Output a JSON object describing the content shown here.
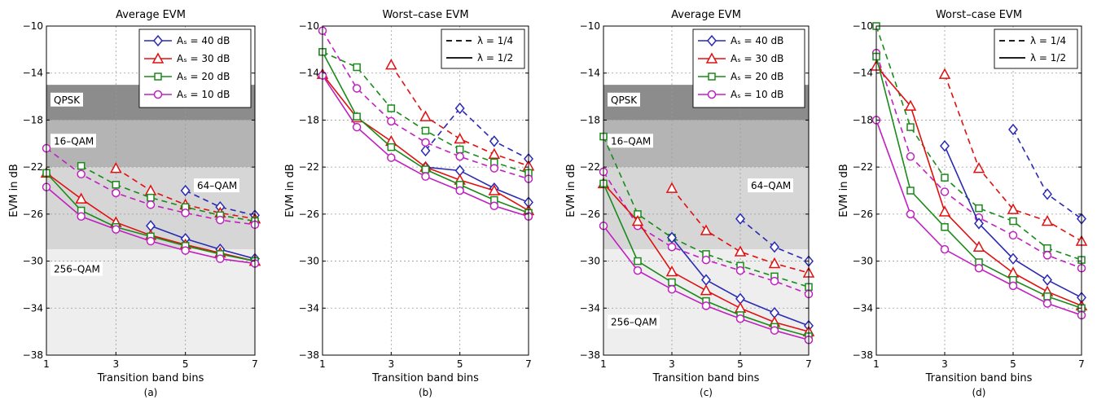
{
  "y_axis_label": "EVM in dB",
  "x_axis_label": "Transition band bins",
  "colors": {
    "series_40": "#2a2ab4",
    "series_30": "#e01010",
    "series_20": "#1a8a1a",
    "series_10": "#c020c0",
    "region_qpsk": "#8c8c8c",
    "region_16qam": "#b4b4b4",
    "region_64qam": "#d6d6d6",
    "region_256qam": "#eeeeee"
  },
  "chart_data": [
    {
      "panel_label": "(a)",
      "title": "Average EVM",
      "type": "line",
      "xlim": [
        1,
        7
      ],
      "ylim": [
        -38,
        -10
      ],
      "xticks": [
        1,
        3,
        5,
        7
      ],
      "yticks": [
        -10,
        -14,
        -18,
        -22,
        -26,
        -30,
        -34,
        -38
      ],
      "grid": "dashed",
      "legend_placement": "top-right",
      "regions": [
        {
          "label": "QPSK",
          "y_range": [
            -18,
            -15
          ],
          "color_key": "region_qpsk"
        },
        {
          "label": "16–QAM",
          "y_range": [
            -22,
            -18
          ],
          "color_key": "region_16qam"
        },
        {
          "label": "64–QAM",
          "y_range": [
            -29,
            -22
          ],
          "color_key": "region_64qam"
        },
        {
          "label": "256–QAM",
          "y_range": [
            -38,
            -29
          ],
          "color_key": "region_256qam"
        }
      ],
      "series": [
        {
          "name": "Aₛ = 40 dB",
          "marker": "diamond",
          "color_key": "series_40",
          "x": [
            4,
            5,
            6,
            7
          ],
          "values": [
            -27.0,
            -28.1,
            -29.0,
            -29.8
          ]
        },
        {
          "name": "Aₛ = 40 dB",
          "marker": "diamond",
          "color_key": "series_40",
          "dashed": true,
          "x": [
            5,
            6,
            7
          ],
          "values": [
            -24.0,
            -25.4,
            -26.1
          ]
        },
        {
          "name": "Aₛ = 30 dB",
          "marker": "triangle",
          "color_key": "series_30",
          "x": [
            1,
            2,
            3,
            4,
            5,
            6,
            7
          ],
          "values": [
            -22.5,
            -24.7,
            -26.7,
            -27.8,
            -28.6,
            -29.3,
            -30.0
          ]
        },
        {
          "name": "Aₛ = 30 dB",
          "marker": "triangle",
          "color_key": "series_30",
          "dashed": true,
          "x": [
            3,
            4,
            5,
            6,
            7
          ],
          "values": [
            -22.1,
            -24.0,
            -25.2,
            -25.9,
            -26.4
          ]
        },
        {
          "name": "Aₛ = 20 dB",
          "marker": "square",
          "color_key": "series_20",
          "x": [
            1,
            2,
            3,
            4,
            5,
            6,
            7
          ],
          "values": [
            -22.5,
            -25.7,
            -27.1,
            -27.9,
            -28.7,
            -29.4,
            -30.0
          ]
        },
        {
          "name": "Aₛ = 20 dB",
          "marker": "square",
          "color_key": "series_20",
          "dashed": true,
          "x": [
            2,
            3,
            4,
            5,
            6,
            7
          ],
          "values": [
            -21.9,
            -23.5,
            -24.6,
            -25.4,
            -26.1,
            -26.6
          ]
        },
        {
          "name": "Aₛ = 10 dB",
          "marker": "circle",
          "color_key": "series_10",
          "x": [
            1,
            2,
            3,
            4,
            5,
            6,
            7
          ],
          "values": [
            -23.7,
            -26.2,
            -27.3,
            -28.3,
            -29.1,
            -29.8,
            -30.2
          ]
        },
        {
          "name": "Aₛ = 10 dB",
          "marker": "circle",
          "color_key": "series_10",
          "dashed": true,
          "x": [
            1,
            2,
            3,
            4,
            5,
            6,
            7
          ],
          "values": [
            -20.4,
            -22.6,
            -24.2,
            -25.2,
            -25.9,
            -26.5,
            -26.9
          ]
        }
      ],
      "legend": [
        {
          "label": "Aₛ = 40 dB",
          "marker": "diamond",
          "color_key": "series_40"
        },
        {
          "label": "Aₛ = 30 dB",
          "marker": "triangle",
          "color_key": "series_30"
        },
        {
          "label": "Aₛ = 20 dB",
          "marker": "square",
          "color_key": "series_20"
        },
        {
          "label": "Aₛ = 10 dB",
          "marker": "circle",
          "color_key": "series_10"
        }
      ]
    },
    {
      "panel_label": "(b)",
      "title": "Worst–case EVM",
      "type": "line",
      "xlim": [
        1,
        7
      ],
      "ylim": [
        -38,
        -10
      ],
      "xticks": [
        1,
        3,
        5,
        7
      ],
      "yticks": [
        -10,
        -14,
        -18,
        -22,
        -26,
        -30,
        -34,
        -38
      ],
      "grid": "dashed",
      "legend_placement": "top-right",
      "regions": [],
      "series": [
        {
          "name": "Aₛ = 40 dB",
          "marker": "diamond",
          "color_key": "series_40",
          "x": [
            4,
            5,
            6,
            7
          ],
          "values": [
            -22.0,
            -22.3,
            -23.8,
            -25.0
          ]
        },
        {
          "name": "Aₛ = 40 dB",
          "marker": "diamond",
          "color_key": "series_40",
          "dashed": true,
          "x": [
            4,
            5,
            6,
            7
          ],
          "values": [
            -20.6,
            -17.0,
            -19.8,
            -21.3
          ]
        },
        {
          "name": "Aₛ = 30 dB",
          "marker": "triangle",
          "color_key": "series_30",
          "x": [
            1,
            2,
            3,
            4,
            5,
            6,
            7
          ],
          "values": [
            -14.1,
            -17.8,
            -19.8,
            -22.0,
            -23.1,
            -24.0,
            -25.7
          ]
        },
        {
          "name": "Aₛ = 30 dB",
          "marker": "triangle",
          "color_key": "series_30",
          "dashed": true,
          "x": [
            3,
            4,
            5,
            6,
            7
          ],
          "values": [
            -13.3,
            -17.7,
            -19.6,
            -20.9,
            -21.9
          ]
        },
        {
          "name": "Aₛ = 20 dB",
          "marker": "square",
          "color_key": "series_20",
          "x": [
            1,
            2,
            3,
            4,
            5,
            6,
            7
          ],
          "values": [
            -12.2,
            -17.7,
            -20.3,
            -22.2,
            -23.5,
            -24.8,
            -25.9
          ]
        },
        {
          "name": "Aₛ = 20 dB",
          "marker": "square",
          "color_key": "series_20",
          "dashed": true,
          "x": [
            1,
            2,
            3,
            4,
            5,
            6,
            7
          ],
          "values": [
            -12.2,
            -13.5,
            -17.0,
            -18.9,
            -20.5,
            -21.6,
            -22.5
          ]
        },
        {
          "name": "Aₛ = 10 dB",
          "marker": "circle",
          "color_key": "series_10",
          "x": [
            1,
            2,
            3,
            4,
            5,
            6,
            7
          ],
          "values": [
            -14.2,
            -18.6,
            -21.2,
            -22.8,
            -24.0,
            -25.3,
            -26.2
          ]
        },
        {
          "name": "Aₛ = 10 dB",
          "marker": "circle",
          "color_key": "series_10",
          "dashed": true,
          "x": [
            1,
            2,
            3,
            4,
            5,
            6,
            7
          ],
          "values": [
            -10.4,
            -15.3,
            -18.1,
            -19.9,
            -21.1,
            -22.1,
            -23.0
          ]
        }
      ],
      "legend": [
        {
          "label": "λ = 1/4",
          "style": "dashed"
        },
        {
          "label": "λ = 1/2",
          "style": "solid"
        }
      ]
    },
    {
      "panel_label": "(c)",
      "title": "Average EVM",
      "type": "line",
      "xlim": [
        1,
        7
      ],
      "ylim": [
        -38,
        -10
      ],
      "xticks": [
        1,
        3,
        5,
        7
      ],
      "yticks": [
        -10,
        -14,
        -18,
        -22,
        -26,
        -30,
        -34,
        -38
      ],
      "grid": "dashed",
      "legend_placement": "top-right",
      "regions": [
        {
          "label": "QPSK",
          "y_range": [
            -18,
            -15
          ],
          "color_key": "region_qpsk"
        },
        {
          "label": "16–QAM",
          "y_range": [
            -22,
            -18
          ],
          "color_key": "region_16qam"
        },
        {
          "label": "64–QAM",
          "y_range": [
            -29,
            -22
          ],
          "color_key": "region_64qam"
        },
        {
          "label": "256–QAM",
          "y_range": [
            -38,
            -29
          ],
          "color_key": "region_256qam"
        }
      ],
      "series": [
        {
          "name": "Aₛ = 40 dB",
          "marker": "diamond",
          "color_key": "series_40",
          "x": [
            3,
            4,
            5,
            6,
            7
          ],
          "values": [
            -28.0,
            -31.6,
            -33.2,
            -34.4,
            -35.5
          ]
        },
        {
          "name": "Aₛ = 40 dB",
          "marker": "diamond",
          "color_key": "series_40",
          "dashed": true,
          "x": [
            5,
            6,
            7
          ],
          "values": [
            -26.4,
            -28.8,
            -30.0
          ]
        },
        {
          "name": "Aₛ = 30 dB",
          "marker": "triangle",
          "color_key": "series_30",
          "x": [
            1,
            2,
            3,
            4,
            5,
            6,
            7
          ],
          "values": [
            -23.4,
            -26.6,
            -30.9,
            -32.5,
            -34.0,
            -35.2,
            -36.0
          ]
        },
        {
          "name": "Aₛ = 30 dB",
          "marker": "triangle",
          "color_key": "series_30",
          "dashed": true,
          "x": [
            3,
            4,
            5,
            6,
            7
          ],
          "values": [
            -23.8,
            -27.4,
            -29.2,
            -30.2,
            -31.0
          ]
        },
        {
          "name": "Aₛ = 20 dB",
          "marker": "square",
          "color_key": "series_20",
          "x": [
            1,
            2,
            3,
            4,
            5,
            6,
            7
          ],
          "values": [
            -23.4,
            -30.0,
            -31.8,
            -33.4,
            -34.6,
            -35.6,
            -36.4
          ]
        },
        {
          "name": "Aₛ = 20 dB",
          "marker": "square",
          "color_key": "series_20",
          "dashed": true,
          "x": [
            1,
            2,
            3,
            4,
            5,
            6,
            7
          ],
          "values": [
            -19.4,
            -26.0,
            -28.0,
            -29.4,
            -30.4,
            -31.3,
            -32.2
          ]
        },
        {
          "name": "Aₛ = 10 dB",
          "marker": "circle",
          "color_key": "series_10",
          "x": [
            1,
            2,
            3,
            4,
            5,
            6,
            7
          ],
          "values": [
            -27.0,
            -30.8,
            -32.4,
            -33.8,
            -34.9,
            -35.9,
            -36.7
          ]
        },
        {
          "name": "Aₛ = 10 dB",
          "marker": "circle",
          "color_key": "series_10",
          "dashed": true,
          "x": [
            1,
            2,
            3,
            4,
            5,
            6,
            7
          ],
          "values": [
            -22.4,
            -27.0,
            -28.8,
            -29.9,
            -30.8,
            -31.7,
            -32.8
          ]
        }
      ],
      "legend": [
        {
          "label": "Aₛ = 40 dB",
          "marker": "diamond",
          "color_key": "series_40"
        },
        {
          "label": "Aₛ = 30 dB",
          "marker": "triangle",
          "color_key": "series_30"
        },
        {
          "label": "Aₛ = 20 dB",
          "marker": "square",
          "color_key": "series_20"
        },
        {
          "label": "Aₛ = 10 dB",
          "marker": "circle",
          "color_key": "series_10"
        }
      ]
    },
    {
      "panel_label": "(d)",
      "title": "Worst–case EVM",
      "type": "line",
      "xlim": [
        1,
        7
      ],
      "ylim": [
        -38,
        -10
      ],
      "xticks": [
        1,
        3,
        5,
        7
      ],
      "yticks": [
        -10,
        -14,
        -18,
        -22,
        -26,
        -30,
        -34,
        -38
      ],
      "grid": "dashed",
      "legend_placement": "top-right",
      "regions": [],
      "series": [
        {
          "name": "Aₛ = 40 dB",
          "marker": "diamond",
          "color_key": "series_40",
          "x": [
            3,
            4,
            5,
            6,
            7
          ],
          "values": [
            -20.2,
            -26.8,
            -29.8,
            -31.6,
            -33.1
          ]
        },
        {
          "name": "Aₛ = 40 dB",
          "marker": "diamond",
          "color_key": "series_40",
          "dashed": true,
          "x": [
            5,
            6,
            7
          ],
          "values": [
            -18.8,
            -24.3,
            -26.4
          ]
        },
        {
          "name": "Aₛ = 30 dB",
          "marker": "triangle",
          "color_key": "series_30",
          "x": [
            1,
            2,
            3,
            4,
            5,
            6,
            7
          ],
          "values": [
            -13.4,
            -16.8,
            -25.8,
            -28.8,
            -31.0,
            -32.6,
            -33.8
          ]
        },
        {
          "name": "Aₛ = 30 dB",
          "marker": "triangle",
          "color_key": "series_30",
          "dashed": true,
          "x": [
            3,
            4,
            5,
            6,
            7
          ],
          "values": [
            -14.1,
            -22.1,
            -25.6,
            -26.6,
            -28.3
          ]
        },
        {
          "name": "Aₛ = 20 dB",
          "marker": "square",
          "color_key": "series_20",
          "x": [
            1,
            2,
            3,
            4,
            5,
            6,
            7
          ],
          "values": [
            -12.6,
            -24.0,
            -27.1,
            -30.1,
            -31.6,
            -33.0,
            -34.0
          ]
        },
        {
          "name": "Aₛ = 20 dB",
          "marker": "square",
          "color_key": "series_20",
          "dashed": true,
          "x": [
            1,
            2,
            3,
            4,
            5,
            6,
            7
          ],
          "values": [
            -10.0,
            -18.6,
            -22.9,
            -25.5,
            -26.6,
            -28.9,
            -29.9
          ]
        },
        {
          "name": "Aₛ = 10 dB",
          "marker": "circle",
          "color_key": "series_10",
          "x": [
            1,
            2,
            3,
            4,
            5,
            6,
            7
          ],
          "values": [
            -18.0,
            -26.0,
            -29.0,
            -30.6,
            -32.1,
            -33.6,
            -34.6
          ]
        },
        {
          "name": "Aₛ = 10 dB",
          "marker": "circle",
          "color_key": "series_10",
          "dashed": true,
          "x": [
            1,
            2,
            3,
            4,
            5,
            6,
            7
          ],
          "values": [
            -12.3,
            -21.1,
            -24.1,
            -26.3,
            -27.8,
            -29.5,
            -30.6
          ]
        }
      ],
      "legend": [
        {
          "label": "λ = 1/4",
          "style": "dashed"
        },
        {
          "label": "λ = 1/2",
          "style": "solid"
        }
      ]
    }
  ]
}
